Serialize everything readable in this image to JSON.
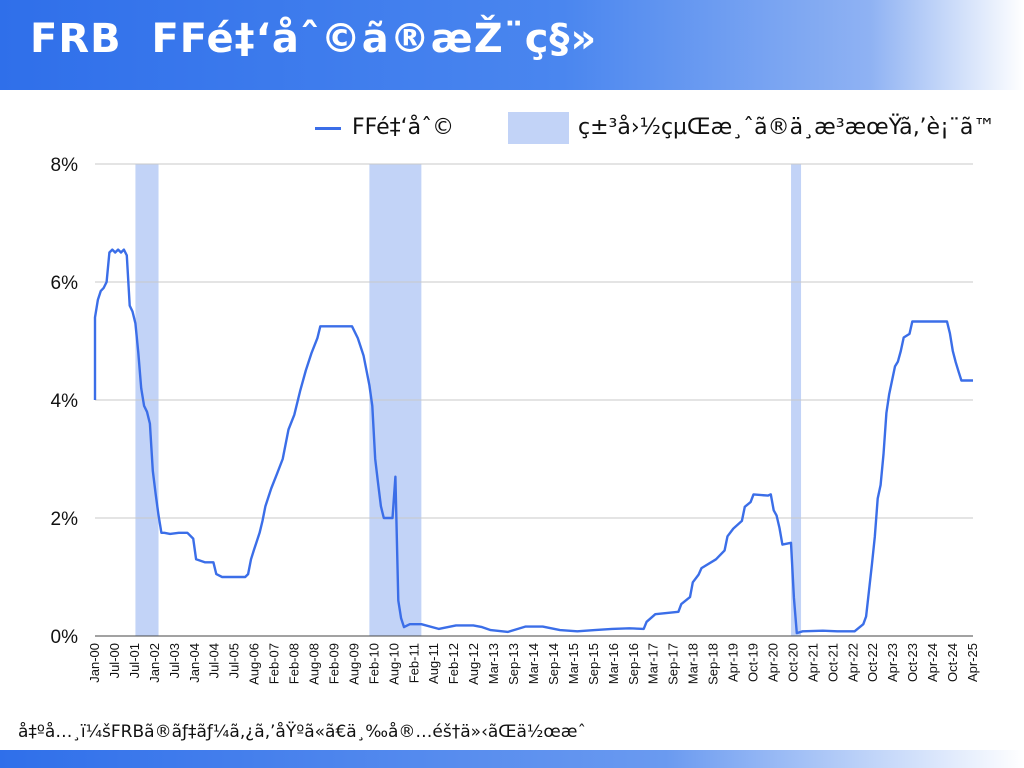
{
  "header": {
    "title": "FRB  FFé‡‘åˆ©ã®æŽ¨ç§»",
    "colors": {
      "accent": "#2f6fea"
    }
  },
  "legend": {
    "line_label": "FFé‡‘åˆ©",
    "band_label": "ç±³å›½çµŒæ¸ˆã®ä¸æ³æœŸã‚’è¡¨ã™"
  },
  "footer": {
    "source": "å‡ºå…¸ï¼šFRBã®ãƒ‡ãƒ¼ã‚¿ã‚’åŸºã«ã€ä¸‰å®…éš†ä»‹ãŒä½œæˆ"
  },
  "chart_data": {
    "type": "line",
    "ylim": [
      0,
      8
    ],
    "y_ticks": [
      0,
      2,
      4,
      6,
      8
    ],
    "y_tick_labels": [
      "0%",
      "2%",
      "4%",
      "6%",
      "8%"
    ],
    "x_range": [
      "2000-01",
      "2025-05"
    ],
    "x_tick_labels": [
      "Jan-00",
      "Jul-00",
      "Jul-01",
      "Jan-02",
      "Jul-03",
      "Jan-04",
      "Jul-04",
      "Jul-05",
      "Aug-06",
      "Feb-07",
      "Feb-08",
      "Aug-08",
      "Feb-09",
      "Aug-09",
      "Feb-10",
      "Aug-10",
      "Feb-11",
      "Aug-11",
      "Feb-12",
      "Aug-12",
      "Mar-13",
      "Sep-13",
      "Mar-14",
      "Sep-14",
      "Mar-15",
      "Sep-15",
      "Mar-16",
      "Sep-16",
      "Mar-17",
      "Sep-17",
      "Mar-18",
      "Sep-18",
      "Apr-19",
      "Oct-19",
      "Apr-20",
      "Oct-20",
      "Apr-21",
      "Oct-21",
      "Apr-22",
      "Oct-22",
      "Apr-23",
      "Oct-23",
      "Apr-24",
      "Oct-24",
      "Apr-25"
    ],
    "grid": true,
    "line_color": "#3b6ee8",
    "band_color": "#c2d3f7",
    "recessions": [
      [
        "2001-03",
        "2001-11"
      ],
      [
        "2007-12",
        "2009-06"
      ],
      [
        "2020-02",
        "2020-04"
      ]
    ],
    "series": [
      {
        "name": "FFé‡‘åˆ©",
        "points": [
          [
            "2000-01",
            4.0
          ],
          [
            "2000-01",
            5.4
          ],
          [
            "2000-02",
            5.7
          ],
          [
            "2000-03",
            5.85
          ],
          [
            "2000-04",
            5.9
          ],
          [
            "2000-05",
            6.0
          ],
          [
            "2000-06",
            6.5
          ],
          [
            "2000-07",
            6.55
          ],
          [
            "2000-08",
            6.5
          ],
          [
            "2000-09",
            6.55
          ],
          [
            "2000-10",
            6.5
          ],
          [
            "2000-11",
            6.55
          ],
          [
            "2000-12",
            6.45
          ],
          [
            "2001-01",
            5.6
          ],
          [
            "2001-02",
            5.5
          ],
          [
            "2001-03",
            5.3
          ],
          [
            "2001-04",
            4.8
          ],
          [
            "2001-05",
            4.2
          ],
          [
            "2001-06",
            3.9
          ],
          [
            "2001-07",
            3.8
          ],
          [
            "2001-08",
            3.6
          ],
          [
            "2001-09",
            2.8
          ],
          [
            "2001-10",
            2.4
          ],
          [
            "2001-11",
            2.05
          ],
          [
            "2001-12",
            1.75
          ],
          [
            "2002-01",
            1.75
          ],
          [
            "2002-03",
            1.73
          ],
          [
            "2002-06",
            1.75
          ],
          [
            "2002-09",
            1.75
          ],
          [
            "2002-11",
            1.65
          ],
          [
            "2002-12",
            1.3
          ],
          [
            "2003-03",
            1.25
          ],
          [
            "2003-06",
            1.25
          ],
          [
            "2003-07",
            1.05
          ],
          [
            "2003-09",
            1.0
          ],
          [
            "2004-01",
            1.0
          ],
          [
            "2004-05",
            1.0
          ],
          [
            "2004-06",
            1.05
          ],
          [
            "2004-07",
            1.3
          ],
          [
            "2004-08",
            1.45
          ],
          [
            "2004-09",
            1.6
          ],
          [
            "2004-10",
            1.75
          ],
          [
            "2004-11",
            1.95
          ],
          [
            "2004-12",
            2.2
          ],
          [
            "2005-02",
            2.5
          ],
          [
            "2005-04",
            2.75
          ],
          [
            "2005-06",
            3.0
          ],
          [
            "2005-08",
            3.5
          ],
          [
            "2005-10",
            3.75
          ],
          [
            "2005-12",
            4.15
          ],
          [
            "2006-02",
            4.5
          ],
          [
            "2006-04",
            4.8
          ],
          [
            "2006-06",
            5.05
          ],
          [
            "2006-07",
            5.25
          ],
          [
            "2006-09",
            5.25
          ],
          [
            "2007-01",
            5.25
          ],
          [
            "2007-06",
            5.25
          ],
          [
            "2007-08",
            5.05
          ],
          [
            "2007-09",
            4.9
          ],
          [
            "2007-10",
            4.75
          ],
          [
            "2007-11",
            4.5
          ],
          [
            "2007-12",
            4.25
          ],
          [
            "2008-01",
            3.9
          ],
          [
            "2008-02",
            3.0
          ],
          [
            "2008-03",
            2.6
          ],
          [
            "2008-04",
            2.2
          ],
          [
            "2008-05",
            2.0
          ],
          [
            "2008-06",
            2.0
          ],
          [
            "2008-07",
            2.0
          ],
          [
            "2008-08",
            2.0
          ],
          [
            "2008-09",
            2.7
          ],
          [
            "2008-10",
            0.6
          ],
          [
            "2008-11",
            0.3
          ],
          [
            "2008-12",
            0.15
          ],
          [
            "2009-02",
            0.2
          ],
          [
            "2009-06",
            0.2
          ],
          [
            "2009-12",
            0.12
          ],
          [
            "2010-06",
            0.18
          ],
          [
            "2010-12",
            0.18
          ],
          [
            "2011-03",
            0.15
          ],
          [
            "2011-06",
            0.1
          ],
          [
            "2011-12",
            0.07
          ],
          [
            "2012-06",
            0.16
          ],
          [
            "2012-12",
            0.16
          ],
          [
            "2013-06",
            0.1
          ],
          [
            "2013-12",
            0.08
          ],
          [
            "2014-06",
            0.1
          ],
          [
            "2014-12",
            0.12
          ],
          [
            "2015-06",
            0.13
          ],
          [
            "2015-11",
            0.12
          ],
          [
            "2015-12",
            0.24
          ],
          [
            "2016-03",
            0.37
          ],
          [
            "2016-11",
            0.41
          ],
          [
            "2016-12",
            0.54
          ],
          [
            "2017-03",
            0.66
          ],
          [
            "2017-04",
            0.91
          ],
          [
            "2017-06",
            1.04
          ],
          [
            "2017-07",
            1.15
          ],
          [
            "2017-12",
            1.3
          ],
          [
            "2018-03",
            1.45
          ],
          [
            "2018-04",
            1.69
          ],
          [
            "2018-06",
            1.82
          ],
          [
            "2018-09",
            1.95
          ],
          [
            "2018-10",
            2.19
          ],
          [
            "2018-12",
            2.27
          ],
          [
            "2019-01",
            2.4
          ],
          [
            "2019-06",
            2.38
          ],
          [
            "2019-07",
            2.4
          ],
          [
            "2019-08",
            2.13
          ],
          [
            "2019-09",
            2.04
          ],
          [
            "2019-10",
            1.83
          ],
          [
            "2019-11",
            1.55
          ],
          [
            "2020-02",
            1.58
          ],
          [
            "2020-03",
            0.65
          ],
          [
            "2020-04",
            0.05
          ],
          [
            "2020-06",
            0.08
          ],
          [
            "2021-01",
            0.09
          ],
          [
            "2021-06",
            0.08
          ],
          [
            "2021-12",
            0.08
          ],
          [
            "2022-03",
            0.2
          ],
          [
            "2022-04",
            0.33
          ],
          [
            "2022-05",
            0.77
          ],
          [
            "2022-06",
            1.21
          ],
          [
            "2022-07",
            1.68
          ],
          [
            "2022-08",
            2.33
          ],
          [
            "2022-09",
            2.56
          ],
          [
            "2022-10",
            3.08
          ],
          [
            "2022-11",
            3.78
          ],
          [
            "2022-12",
            4.1
          ],
          [
            "2023-02",
            4.57
          ],
          [
            "2023-03",
            4.65
          ],
          [
            "2023-04",
            4.83
          ],
          [
            "2023-05",
            5.06
          ],
          [
            "2023-07",
            5.12
          ],
          [
            "2023-08",
            5.33
          ],
          [
            "2024-08",
            5.33
          ],
          [
            "2024-09",
            5.13
          ],
          [
            "2024-10",
            4.83
          ],
          [
            "2024-11",
            4.64
          ],
          [
            "2024-12",
            4.48
          ],
          [
            "2025-01",
            4.33
          ],
          [
            "2025-05",
            4.33
          ]
        ]
      }
    ]
  }
}
